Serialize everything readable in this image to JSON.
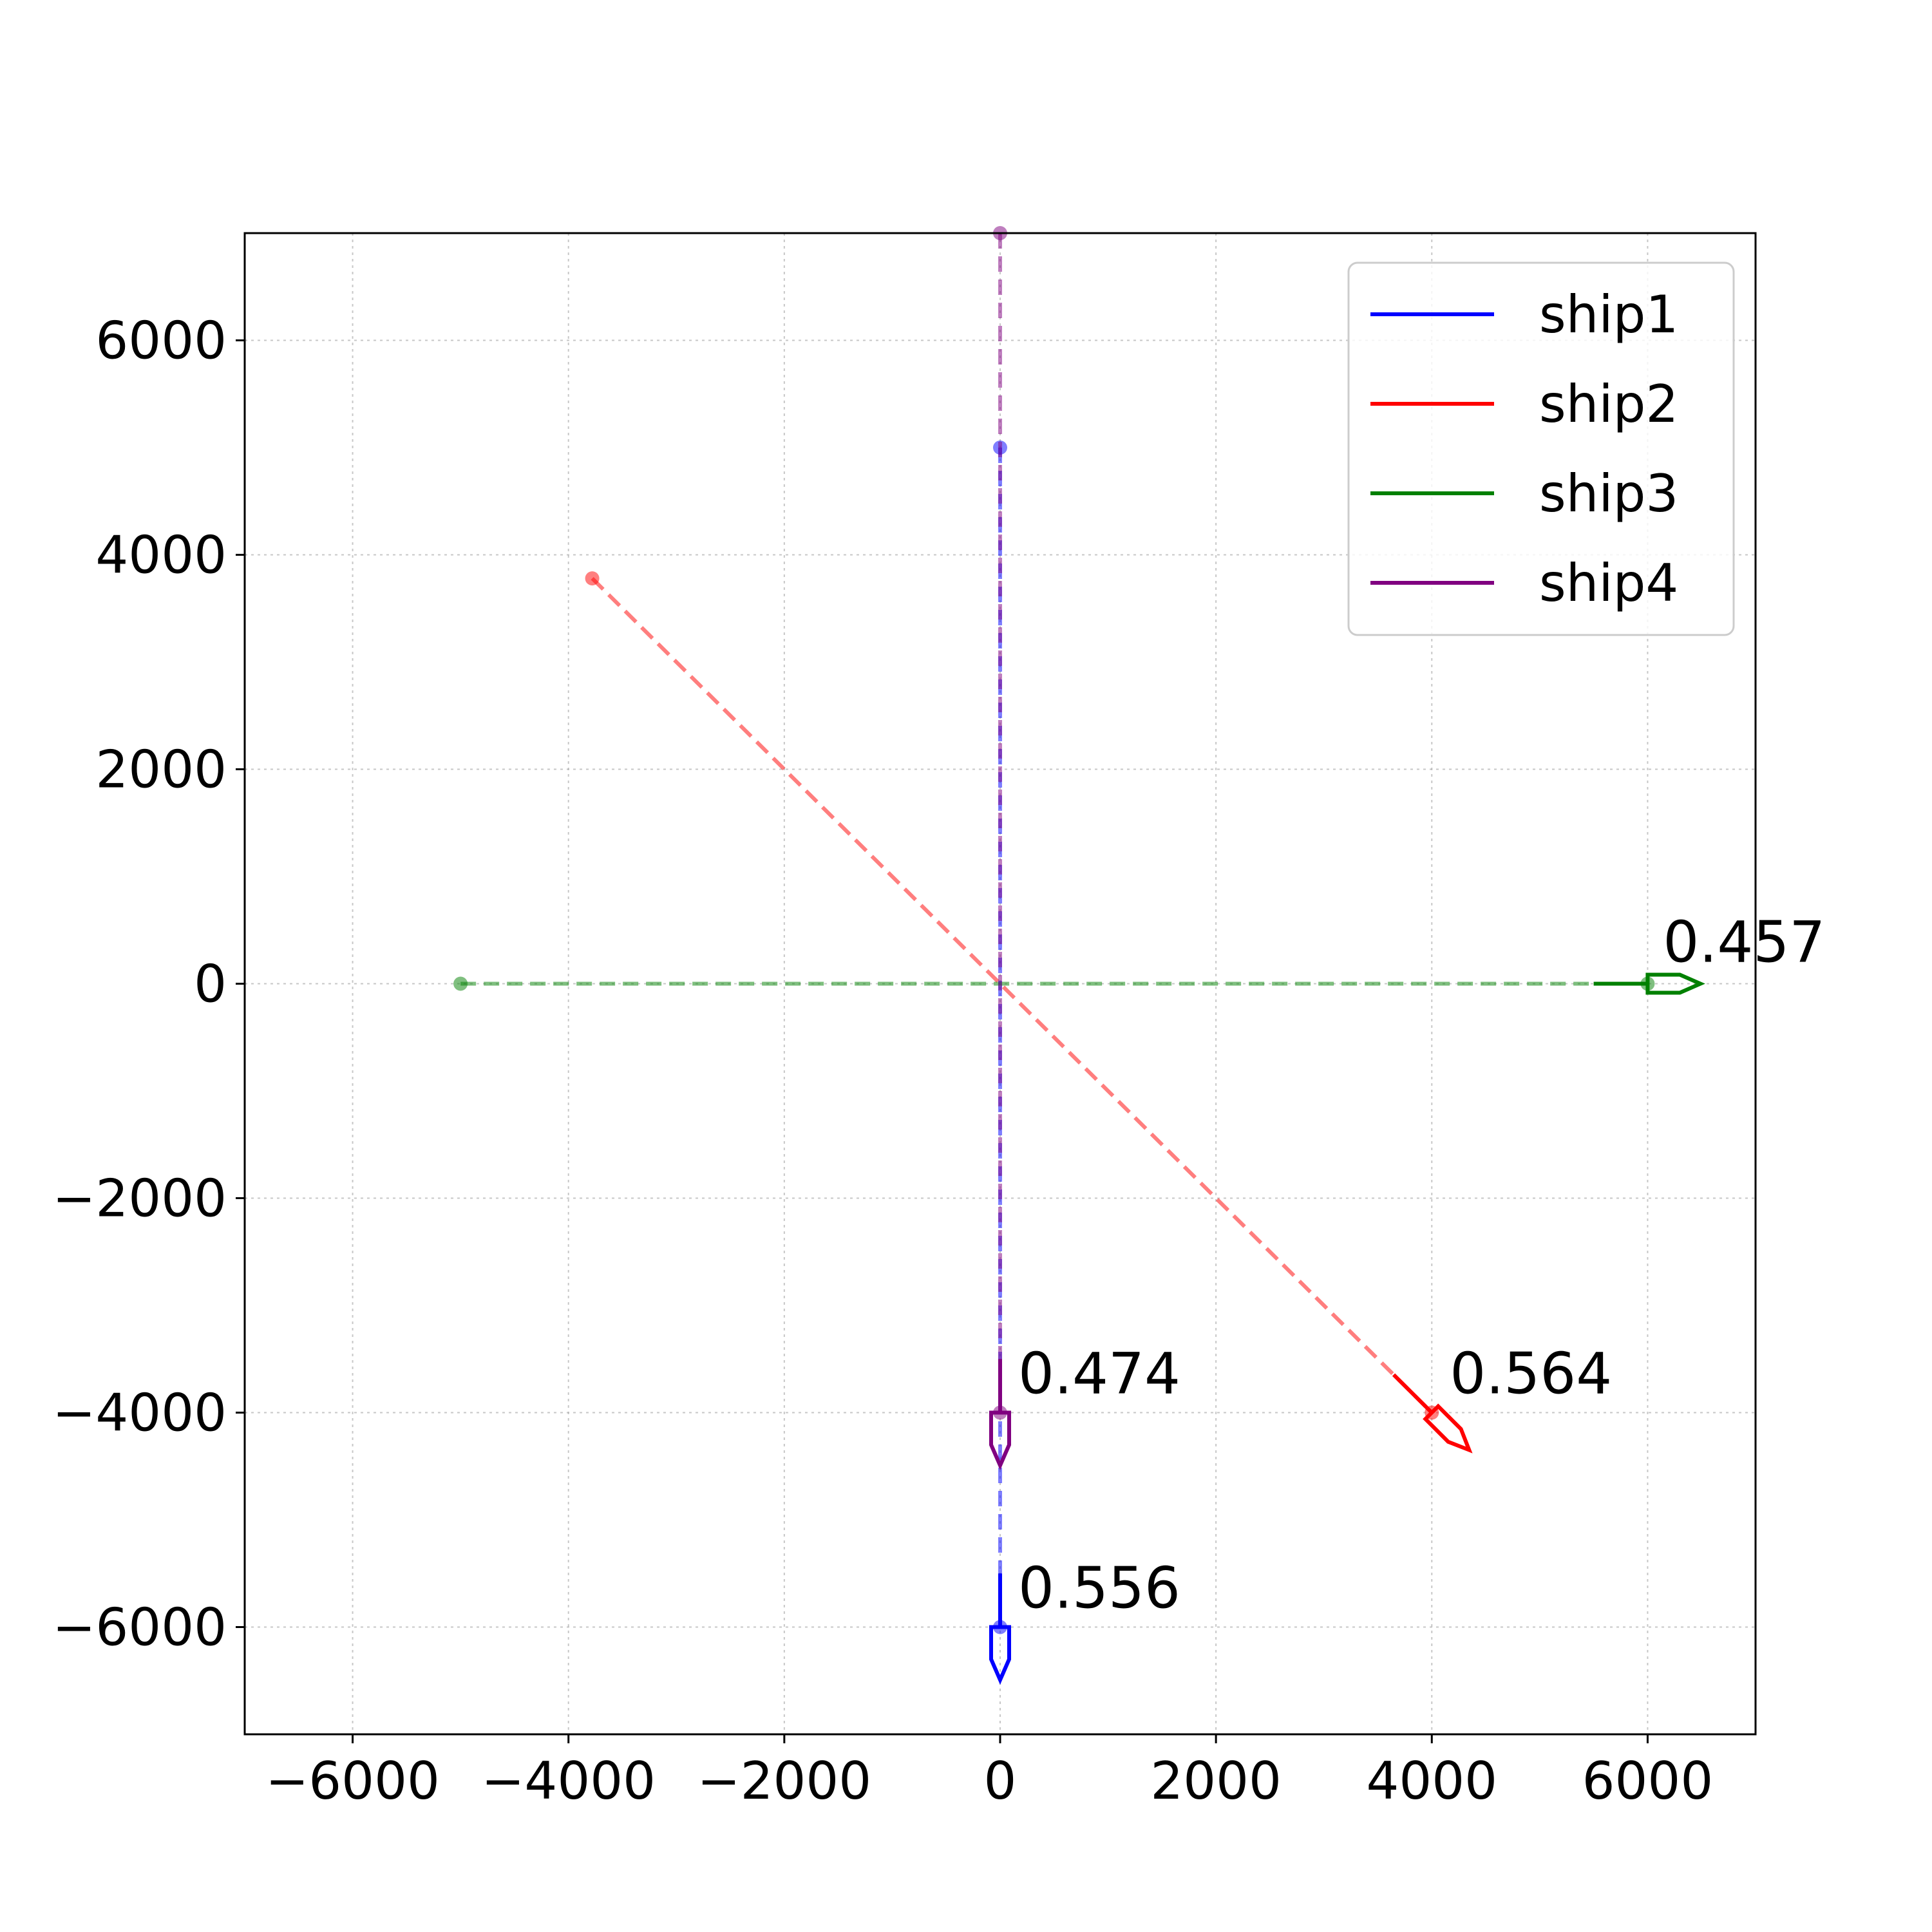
{
  "chart_data": {
    "type": "line",
    "title": "",
    "xlabel": "",
    "ylabel": "",
    "xlim": [
      -7000,
      7000
    ],
    "ylim": [
      -7000,
      7000
    ],
    "grid": true,
    "legend_position": "top-right",
    "x_ticks": [
      -6000,
      -4000,
      -2000,
      0,
      2000,
      4000,
      6000
    ],
    "y_ticks": [
      -6000,
      -4000,
      -2000,
      0,
      2000,
      4000,
      6000
    ],
    "x_tick_labels": [
      "−6000",
      "−4000",
      "−2000",
      "0",
      "2000",
      "4000",
      "6000"
    ],
    "y_tick_labels": [
      "−6000",
      "−4000",
      "−2000",
      "0",
      "2000",
      "4000",
      "6000"
    ],
    "series": [
      {
        "name": "ship1",
        "color": "#0000ff",
        "path_start": [
          0,
          5000
        ],
        "path_end": [
          0,
          -6000
        ],
        "position": [
          0,
          -6000
        ],
        "heading_deg": 180,
        "trail_length": 500,
        "value_label": "0.556"
      },
      {
        "name": "ship2",
        "color": "#ff0000",
        "path_start": [
          -3780,
          3780
        ],
        "path_end": [
          4000,
          -4000
        ],
        "position": [
          4000,
          -4000
        ],
        "heading_deg": 135,
        "trail_length": 500,
        "value_label": "0.564"
      },
      {
        "name": "ship3",
        "color": "#008000",
        "path_start": [
          -5000,
          0
        ],
        "path_end": [
          6000,
          0
        ],
        "position": [
          6000,
          0
        ],
        "heading_deg": 90,
        "trail_length": 500,
        "value_label": "0.457"
      },
      {
        "name": "ship4",
        "color": "#800080",
        "path_start": [
          0,
          7000
        ],
        "path_end": [
          0,
          -4000
        ],
        "position": [
          0,
          -4000
        ],
        "heading_deg": 180,
        "trail_length": 500,
        "value_label": "0.474"
      }
    ]
  }
}
